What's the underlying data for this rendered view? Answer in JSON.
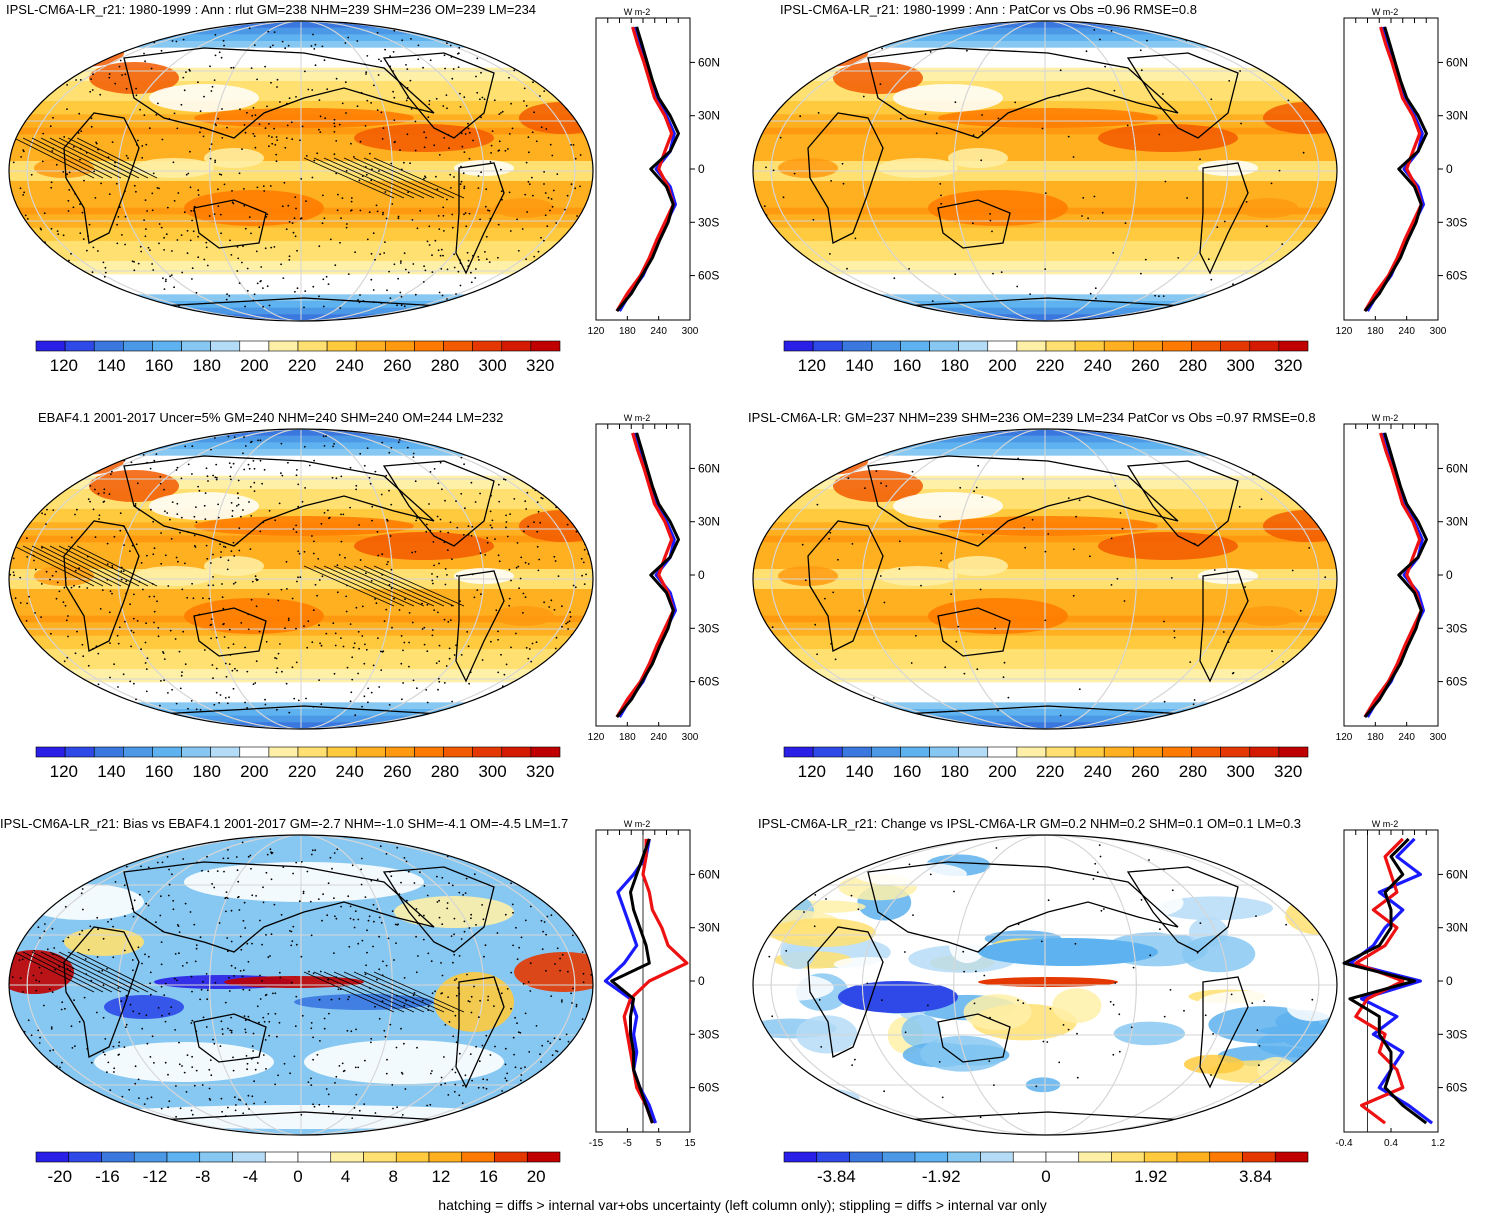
{
  "panels": [
    {
      "title": "IPSL-CM6A-LR_r21: 1980-1999 : Ann : rlut GM=238 NHM=239 SHM=236 OM=239 LM=234",
      "kind": "abs",
      "stipple": "dense",
      "hatch": true,
      "colorbar_labels": [
        "120",
        "140",
        "160",
        "180",
        "200",
        "220",
        "240",
        "260",
        "280",
        "300",
        "320"
      ],
      "profile_xticks": [
        "120",
        "180",
        "240",
        "300"
      ],
      "profile_units": "W m-2",
      "profile_lat_labels": [
        "60N",
        "30N",
        "0",
        "30S",
        "60S"
      ]
    },
    {
      "title": "IPSL-CM6A-LR_r21: 1980-1999 : Ann : PatCor vs Obs =0.96 RMSE=0.8",
      "kind": "abs",
      "stipple": "sparse",
      "hatch": false,
      "colorbar_labels": [
        "120",
        "140",
        "160",
        "180",
        "200",
        "220",
        "240",
        "260",
        "280",
        "300",
        "320"
      ],
      "profile_xticks": [
        "120",
        "180",
        "240",
        "300"
      ],
      "profile_units": "W m-2",
      "profile_lat_labels": [
        "60N",
        "30N",
        "0",
        "30S",
        "60S"
      ]
    },
    {
      "title": "EBAF4.1 2001-2017 Uncer=5% GM=240 NHM=240 SHM=240 OM=244 LM=232",
      "kind": "abs",
      "stipple": "dense",
      "hatch": true,
      "colorbar_labels": [
        "120",
        "140",
        "160",
        "180",
        "200",
        "220",
        "240",
        "260",
        "280",
        "300",
        "320"
      ],
      "profile_xticks": [
        "120",
        "180",
        "240",
        "300"
      ],
      "profile_units": "W m-2",
      "profile_lat_labels": [
        "60N",
        "30N",
        "0",
        "30S",
        "60S"
      ]
    },
    {
      "title": "IPSL-CM6A-LR: GM=237 NHM=239 SHM=236 OM=239 LM=234 PatCor vs Obs =0.97 RMSE=0.8",
      "kind": "abs",
      "stipple": "sparse",
      "hatch": false,
      "colorbar_labels": [
        "120",
        "140",
        "160",
        "180",
        "200",
        "220",
        "240",
        "260",
        "280",
        "300",
        "320"
      ],
      "profile_xticks": [
        "120",
        "180",
        "240",
        "300"
      ],
      "profile_units": "W m-2",
      "profile_lat_labels": [
        "60N",
        "30N",
        "0",
        "30S",
        "60S"
      ]
    },
    {
      "title": "IPSL-CM6A-LR_r21: Bias vs EBAF4.1 2001-2017 GM=-2.7 NHM=-1.0 SHM=-4.1 OM=-4.5 LM=1.7",
      "kind": "bias",
      "stipple": "dense",
      "hatch": true,
      "colorbar_labels": [
        "-20",
        "-16",
        "-12",
        "-8",
        "-4",
        "0",
        "4",
        "8",
        "12",
        "16",
        "20"
      ],
      "profile_xticks": [
        "-15",
        "-5",
        "5",
        "15"
      ],
      "profile_units": "W m-2",
      "profile_lat_labels": [
        "60N",
        "30N",
        "0",
        "30S",
        "60S"
      ]
    },
    {
      "title": "IPSL-CM6A-LR_r21: Change vs IPSL-CM6A-LR GM=0.2 NHM=0.2 SHM=0.1 OM=0.1 LM=0.3",
      "kind": "change",
      "stipple": "sparse",
      "hatch": false,
      "colorbar_labels": [
        "-3.84",
        "-1.92",
        "0",
        "1.92",
        "3.84"
      ],
      "profile_xticks": [
        "-0.4",
        "0.4",
        "1.2"
      ],
      "profile_units": "W m-2",
      "profile_lat_labels": [
        "60N",
        "30N",
        "0",
        "30S",
        "60S"
      ]
    }
  ],
  "footer": "hatching = diffs > internal var+obs uncertainty (left column only); stippling = diffs > internal var only",
  "colors": {
    "abs_scale": [
      "#2a1fe6",
      "#2e49e8",
      "#3a78e0",
      "#4b98e6",
      "#5db2ef",
      "#87c8f2",
      "#b5dcf7",
      "#ffffff",
      "#fff0a8",
      "#ffe070",
      "#ffca3e",
      "#ffb020",
      "#ff9a10",
      "#ff7a00",
      "#f25a00",
      "#e43800",
      "#d41a00",
      "#c00000"
    ],
    "div_scale": [
      "#2a1fe6",
      "#2e49e8",
      "#3a78e0",
      "#4b98e6",
      "#5db2ef",
      "#87c8f2",
      "#b5dcf7",
      "#ffffff",
      "#ffffff",
      "#fff0a8",
      "#ffe070",
      "#ffca3e",
      "#ffb020",
      "#ff7a00",
      "#e43800",
      "#c00000"
    ]
  },
  "chart_data": [
    {
      "type": "heatmap",
      "title": "IPSL-CM6A-LR_r21: 1980-1999 : Ann : rlut GM=238 NHM=239 SHM=236 OM=239 LM=234",
      "legend_ticks": [
        120,
        140,
        160,
        180,
        200,
        220,
        240,
        260,
        280,
        300,
        320
      ],
      "profile": {
        "lat": [
          80,
          70,
          60,
          50,
          40,
          30,
          20,
          10,
          0,
          -10,
          -20,
          -30,
          -40,
          -50,
          -60,
          -70,
          -80
        ],
        "series": [
          {
            "values": [
              195,
              205,
              215,
              225,
              235,
              255,
              270,
              262,
              235,
              262,
              272,
              255,
              238,
              225,
              210,
              185,
              165
            ]
          },
          {
            "values": [
              190,
              200,
              212,
              222,
              232,
              252,
              265,
              252,
              240,
              258,
              268,
              252,
              236,
              222,
              205,
              180,
              160
            ]
          },
          {
            "values": [
              198,
              208,
              218,
              228,
              240,
              262,
              278,
              262,
              225,
              255,
              268,
              258,
              242,
              228,
              208,
              188,
              160
            ]
          }
        ]
      }
    },
    {
      "type": "heatmap",
      "title": "IPSL-CM6A-LR_r21: 1980-1999 : Ann : PatCor vs Obs =0.96 RMSE=0.8",
      "legend_ticks": [
        120,
        140,
        160,
        180,
        200,
        220,
        240,
        260,
        280,
        300,
        320
      ],
      "profile": {
        "lat": [
          80,
          70,
          60,
          50,
          40,
          30,
          20,
          10,
          0,
          -10,
          -20,
          -30,
          -40,
          -50,
          -60,
          -70,
          -80
        ],
        "series": [
          {
            "values": [
              195,
              205,
              215,
              225,
              235,
              255,
              270,
              262,
              235,
              262,
              272,
              255,
              238,
              225,
              210,
              185,
              165
            ]
          },
          {
            "values": [
              190,
              200,
              212,
              222,
              232,
              252,
              265,
              252,
              240,
              258,
              268,
              252,
              236,
              222,
              205,
              180,
              160
            ]
          },
          {
            "values": [
              198,
              208,
              218,
              228,
              240,
              262,
              278,
              262,
              225,
              255,
              268,
              258,
              242,
              228,
              208,
              188,
              160
            ]
          }
        ]
      }
    },
    {
      "type": "heatmap",
      "title": "EBAF4.1 2001-2017 Uncer=5% GM=240 NHM=240 SHM=240 OM=244 LM=232",
      "legend_ticks": [
        120,
        140,
        160,
        180,
        200,
        220,
        240,
        260,
        280,
        300,
        320
      ],
      "profile": {
        "lat": [
          80,
          70,
          60,
          50,
          40,
          30,
          20,
          10,
          0,
          -10,
          -20,
          -30,
          -40,
          -50,
          -60,
          -70,
          -80
        ],
        "series": [
          {
            "values": [
              195,
              205,
              215,
              225,
              235,
              255,
              270,
              262,
              235,
              262,
              272,
              255,
              238,
              225,
              210,
              185,
              165
            ]
          },
          {
            "values": [
              190,
              200,
              212,
              222,
              232,
              252,
              265,
              252,
              240,
              258,
              268,
              252,
              236,
              222,
              205,
              180,
              160
            ]
          },
          {
            "values": [
              198,
              208,
              218,
              228,
              240,
              262,
              278,
              262,
              225,
              255,
              268,
              258,
              242,
              228,
              208,
              188,
              160
            ]
          }
        ]
      }
    },
    {
      "type": "heatmap",
      "title": "IPSL-CM6A-LR: GM=237 NHM=239 SHM=236 OM=239 LM=234 PatCor vs Obs =0.97 RMSE=0.8",
      "legend_ticks": [
        120,
        140,
        160,
        180,
        200,
        220,
        240,
        260,
        280,
        300,
        320
      ],
      "profile": {
        "lat": [
          80,
          70,
          60,
          50,
          40,
          30,
          20,
          10,
          0,
          -10,
          -20,
          -30,
          -40,
          -50,
          -60,
          -70,
          -80
        ],
        "series": [
          {
            "values": [
              195,
              205,
              215,
              225,
              235,
              255,
              270,
              262,
              235,
              262,
              272,
              255,
              238,
              225,
              210,
              185,
              165
            ]
          },
          {
            "values": [
              190,
              200,
              212,
              222,
              232,
              252,
              265,
              252,
              240,
              258,
              268,
              252,
              236,
              222,
              205,
              180,
              160
            ]
          },
          {
            "values": [
              198,
              208,
              218,
              228,
              240,
              262,
              278,
              262,
              225,
              255,
              268,
              258,
              242,
              228,
              208,
              188,
              160
            ]
          }
        ]
      }
    },
    {
      "type": "heatmap",
      "title": "IPSL-CM6A-LR_r21: Bias vs EBAF4.1 2001-2017 GM=-2.7 NHM=-1.0 SHM=-4.1 OM=-4.5 LM=1.7",
      "legend_ticks": [
        -20,
        -16,
        -12,
        -8,
        -4,
        0,
        4,
        8,
        12,
        16,
        20
      ],
      "profile": {
        "lat": [
          80,
          70,
          60,
          50,
          40,
          30,
          20,
          10,
          0,
          -10,
          -20,
          -30,
          -40,
          -50,
          -60,
          -70,
          -80
        ],
        "series": [
          {
            "values": [
              2,
              1,
              -3,
              -8,
              -6,
              -4,
              -2,
              -6,
              -12,
              -4,
              -2,
              -3,
              -2,
              -3,
              -1,
              2,
              4
            ]
          },
          {
            "values": [
              1,
              1,
              0,
              2,
              3,
              6,
              8,
              14,
              2,
              -4,
              -6,
              -5,
              -4,
              -3,
              -2,
              1,
              3
            ]
          },
          {
            "values": [
              2,
              0,
              -2,
              -4,
              -3,
              -1,
              1,
              2,
              -10,
              -3,
              -4,
              -4,
              -3,
              -3,
              -1,
              1,
              3
            ]
          }
        ]
      }
    },
    {
      "type": "heatmap",
      "title": "IPSL-CM6A-LR_r21: Change vs IPSL-CM6A-LR GM=0.2 NHM=0.2 SHM=0.1 OM=0.1 LM=0.3",
      "legend_ticks": [
        -3.84,
        -1.92,
        0,
        1.92,
        3.84
      ],
      "profile": {
        "lat": [
          80,
          70,
          60,
          50,
          40,
          30,
          20,
          10,
          0,
          -10,
          -20,
          -30,
          -40,
          -50,
          -60,
          -70,
          -80
        ],
        "series": [
          {
            "values": [
              0.8,
              0.5,
              0.9,
              0.2,
              0.6,
              0.3,
              0.1,
              -0.3,
              0.9,
              -0.1,
              0.5,
              0.1,
              0.6,
              0.4,
              0.2,
              0.7,
              1.1
            ]
          },
          {
            "values": [
              0.6,
              0.3,
              0.4,
              0.5,
              0.1,
              0.5,
              0.3,
              -0.2,
              0.6,
              0.0,
              -0.2,
              0.3,
              0.2,
              0.5,
              0.6,
              -0.1,
              0.3
            ]
          },
          {
            "values": [
              0.7,
              0.4,
              0.6,
              0.3,
              0.4,
              0.4,
              0.2,
              -0.4,
              0.8,
              -0.3,
              0.2,
              0.2,
              0.4,
              0.4,
              0.3,
              0.6,
              1.0
            ]
          }
        ]
      }
    }
  ]
}
